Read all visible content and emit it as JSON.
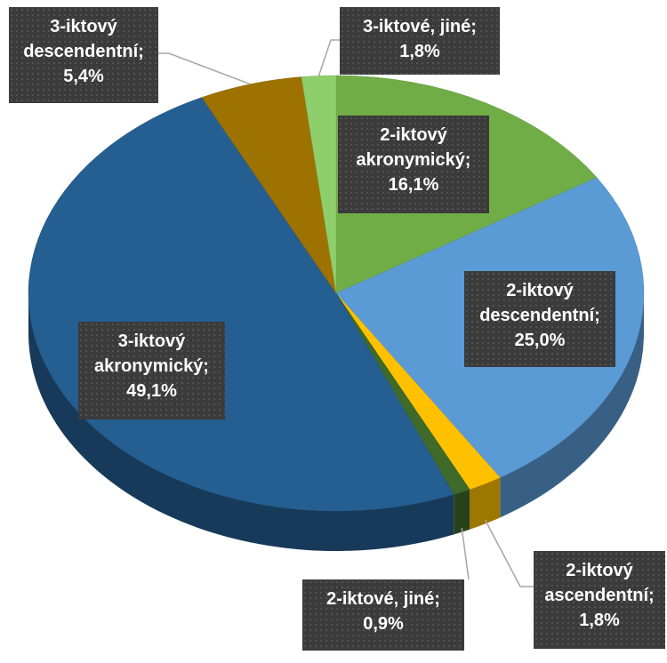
{
  "chart_data": {
    "type": "pie",
    "categories": [
      "2-iktový akronymický;",
      "2-iktový descendentní;",
      "2-iktový ascendentní;",
      "2-iktové, jiné;",
      "3-iktový akronymický;",
      "3-iktový descendentní;",
      "3-iktové, jiné;"
    ],
    "values": [
      16.1,
      25.0,
      1.8,
      0.9,
      49.1,
      5.4,
      1.8
    ],
    "value_labels": [
      "16,1%",
      "25,0%",
      "1,8%",
      "0,9%",
      "49,1%",
      "5,4%",
      "1,8%"
    ],
    "colors": [
      "#70ad47",
      "#5b9bd5",
      "#ffc000",
      "#3f6a2a",
      "#255e91",
      "#9e7200",
      "#8fcf6b"
    ]
  }
}
